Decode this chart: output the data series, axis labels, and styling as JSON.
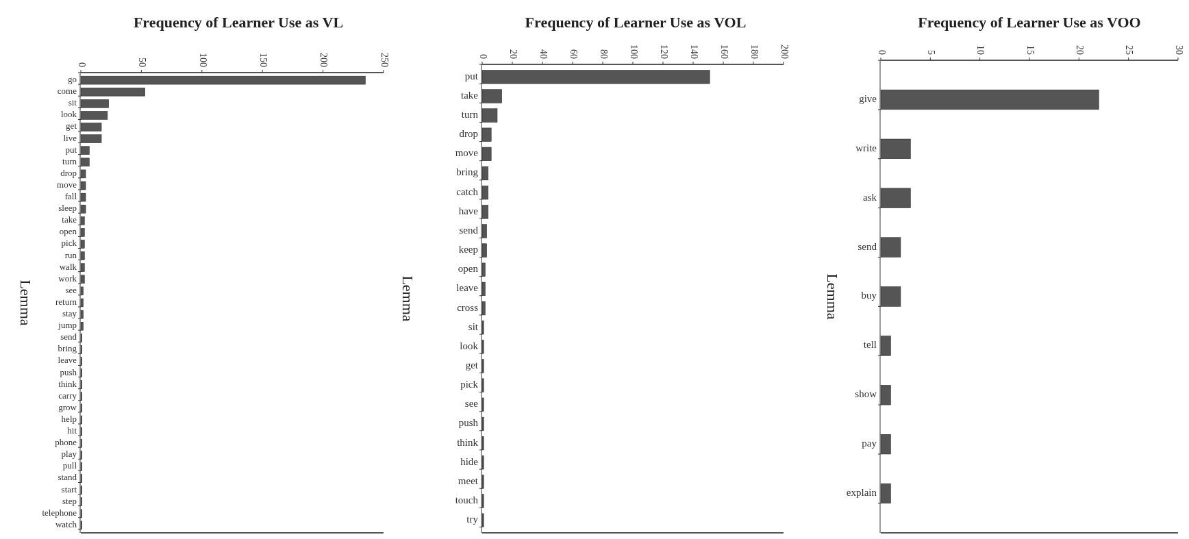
{
  "chart_data": [
    {
      "type": "bar",
      "orientation": "horizontal",
      "title": "Frequency of Learner Use as VL",
      "ylabel": "Lemma",
      "color": "#555555",
      "xlim": [
        0,
        250
      ],
      "xticks": [
        0,
        50,
        100,
        150,
        200,
        250
      ],
      "categories": [
        "go",
        "come",
        "sit",
        "look",
        "get",
        "live",
        "put",
        "turn",
        "drop",
        "move",
        "fall",
        "sleep",
        "take",
        "open",
        "pick",
        "run",
        "walk",
        "work",
        "see",
        "return",
        "stay",
        "jump",
        "send",
        "bring",
        "leave",
        "push",
        "think",
        "carry",
        "grow",
        "help",
        "hit",
        "phone",
        "play",
        "pull",
        "stand",
        "start",
        "step",
        "telephone",
        "watch"
      ],
      "values": [
        235,
        53,
        23,
        22,
        17,
        17,
        7,
        7,
        4,
        4,
        4,
        4,
        3,
        3,
        3,
        3,
        3,
        3,
        2,
        2,
        2,
        2,
        1,
        1,
        1,
        1,
        1,
        1,
        1,
        1,
        1,
        1,
        1,
        1,
        1,
        1,
        1,
        1,
        1
      ]
    },
    {
      "type": "bar",
      "orientation": "horizontal",
      "title": "Frequency of Learner Use as VOL",
      "ylabel": "Lemma",
      "color": "#555555",
      "xlim": [
        0,
        200
      ],
      "xticks": [
        0,
        20,
        40,
        60,
        80,
        100,
        120,
        140,
        160,
        180,
        200
      ],
      "categories": [
        "put",
        "take",
        "turn",
        "drop",
        "move",
        "bring",
        "catch",
        "have",
        "send",
        "keep",
        "open",
        "leave",
        "cross",
        "sit",
        "look",
        "get",
        "pick",
        "see",
        "push",
        "think",
        "hide",
        "meet",
        "touch",
        "try"
      ],
      "values": [
        151,
        13,
        10,
        6,
        6,
        4,
        4,
        4,
        3,
        3,
        2,
        2,
        2,
        1,
        1,
        1,
        1,
        1,
        1,
        1,
        1,
        1,
        1,
        1
      ]
    },
    {
      "type": "bar",
      "orientation": "horizontal",
      "title": "Frequency of Learner Use as VOO",
      "ylabel": "Lemma",
      "color": "#555555",
      "xlim": [
        0,
        30
      ],
      "xticks": [
        0,
        5,
        10,
        15,
        20,
        25,
        30
      ],
      "categories": [
        "give",
        "write",
        "ask",
        "send",
        "buy",
        "tell",
        "show",
        "pay",
        "explain"
      ],
      "values": [
        22,
        3,
        3,
        2,
        2,
        1,
        1,
        1,
        1
      ]
    }
  ]
}
